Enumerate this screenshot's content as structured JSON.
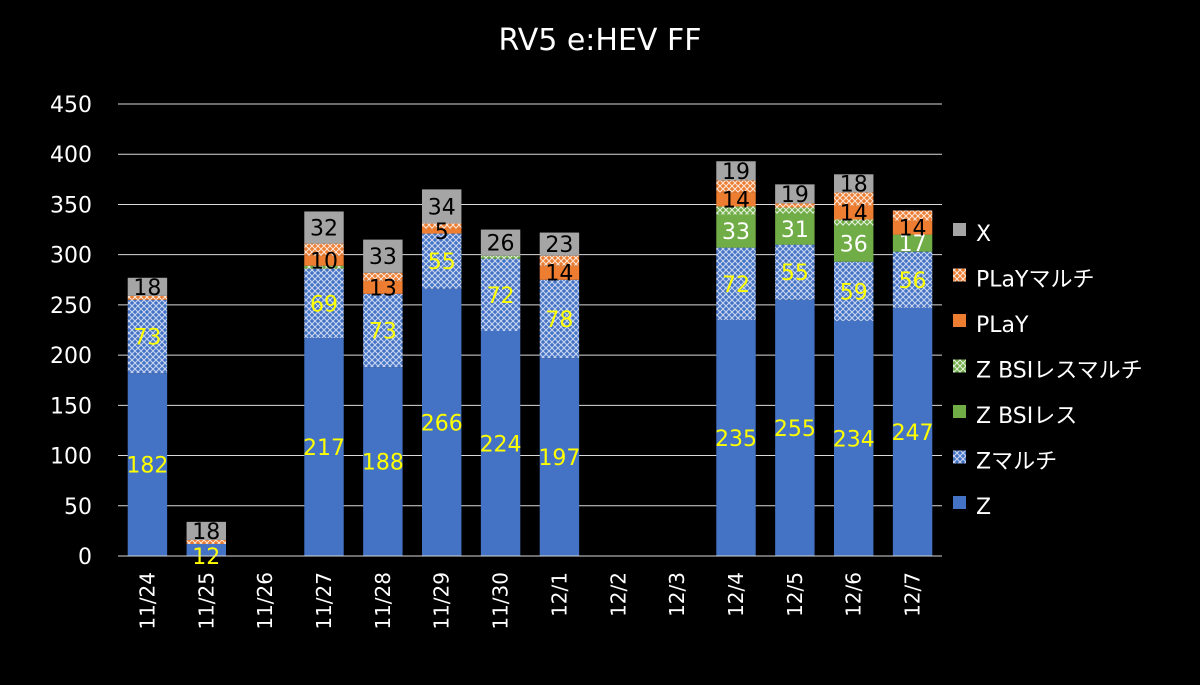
{
  "colors": {
    "background": "#000000",
    "gridline": "#d9d9d9",
    "Z": "#4472c4",
    "Zmulti": "#4472c4",
    "ZBSI": "#70ad47",
    "ZBSImulti": "#70ad47",
    "PLaY": "#ed7d31",
    "PLaYmulti": "#ed7d31",
    "X": "#a5a5a5",
    "label_yellow": "#ffff00",
    "label_dark": "#000000",
    "label_white": "#ffffff"
  },
  "chart_data": {
    "type": "bar",
    "stacked": true,
    "title": "RV5 e:HEV FF",
    "xlabel": "",
    "ylabel": "",
    "ylim": [
      0,
      450
    ],
    "yticks": [
      0,
      50,
      100,
      150,
      200,
      250,
      300,
      350,
      400,
      450
    ],
    "grid": true,
    "legend_position": "right",
    "categories": [
      "11/24",
      "11/25",
      "11/26",
      "11/27",
      "11/28",
      "11/29",
      "11/30",
      "12/1",
      "12/2",
      "12/3",
      "12/4",
      "12/5",
      "12/6",
      "12/7"
    ],
    "series": [
      {
        "name": "Z",
        "key": "Z",
        "values": [
          182,
          12,
          0,
          217,
          188,
          266,
          224,
          197,
          0,
          0,
          235,
          255,
          234,
          247
        ]
      },
      {
        "name": "Zマルチ",
        "key": "Zmulti",
        "values": [
          73,
          0,
          0,
          69,
          73,
          55,
          72,
          78,
          0,
          0,
          72,
          55,
          59,
          56
        ]
      },
      {
        "name": "Z BSIレス",
        "key": "ZBSI",
        "values": [
          0,
          0,
          0,
          0,
          0,
          0,
          0,
          0,
          0,
          0,
          33,
          31,
          36,
          17
        ]
      },
      {
        "name": "Z BSIレスマルチ",
        "key": "ZBSImulti",
        "values": [
          0,
          0,
          0,
          3,
          0,
          0,
          3,
          0,
          0,
          0,
          8,
          6,
          6,
          0
        ]
      },
      {
        "name": "PLaY",
        "key": "PLaY",
        "values": [
          0,
          0,
          0,
          10,
          13,
          5,
          0,
          14,
          0,
          0,
          14,
          0,
          14,
          14
        ]
      },
      {
        "name": "PLaYマルチ",
        "key": "PLaYmulti",
        "values": [
          4,
          4,
          0,
          12,
          8,
          5,
          0,
          10,
          0,
          0,
          12,
          4,
          13,
          10
        ]
      },
      {
        "name": "X",
        "key": "X",
        "values": [
          18,
          18,
          0,
          32,
          33,
          34,
          26,
          23,
          0,
          0,
          19,
          19,
          18,
          0
        ]
      }
    ],
    "data_labels": [
      {
        "category": "11/24",
        "series": "Z",
        "text": "182"
      },
      {
        "category": "11/24",
        "series": "Zmulti",
        "text": "73"
      },
      {
        "category": "11/24",
        "series": "X",
        "text": "18"
      },
      {
        "category": "11/25",
        "series": "Z",
        "text": "12"
      },
      {
        "category": "11/25",
        "series": "X",
        "text": "18"
      },
      {
        "category": "11/27",
        "series": "Z",
        "text": "217"
      },
      {
        "category": "11/27",
        "series": "Zmulti",
        "text": "69"
      },
      {
        "category": "11/27",
        "series": "PLaY",
        "text": "10"
      },
      {
        "category": "11/27",
        "series": "X",
        "text": "32"
      },
      {
        "category": "11/28",
        "series": "Z",
        "text": "188"
      },
      {
        "category": "11/28",
        "series": "Zmulti",
        "text": "73"
      },
      {
        "category": "11/28",
        "series": "PLaY",
        "text": "13"
      },
      {
        "category": "11/28",
        "series": "X",
        "text": "33"
      },
      {
        "category": "11/29",
        "series": "Z",
        "text": "266"
      },
      {
        "category": "11/29",
        "series": "Zmulti",
        "text": "55"
      },
      {
        "category": "11/29",
        "series": "PLaY",
        "text": "5"
      },
      {
        "category": "11/29",
        "series": "X",
        "text": "34"
      },
      {
        "category": "11/30",
        "series": "Z",
        "text": "224"
      },
      {
        "category": "11/30",
        "series": "Zmulti",
        "text": "72"
      },
      {
        "category": "11/30",
        "series": "X",
        "text": "26"
      },
      {
        "category": "12/1",
        "series": "Z",
        "text": "197"
      },
      {
        "category": "12/1",
        "series": "Zmulti",
        "text": "78"
      },
      {
        "category": "12/1",
        "series": "PLaY",
        "text": "14"
      },
      {
        "category": "12/1",
        "series": "X",
        "text": "23"
      },
      {
        "category": "12/4",
        "series": "Z",
        "text": "235"
      },
      {
        "category": "12/4",
        "series": "Zmulti",
        "text": "72"
      },
      {
        "category": "12/4",
        "series": "ZBSI",
        "text": "33"
      },
      {
        "category": "12/4",
        "series": "PLaY",
        "text": "14"
      },
      {
        "category": "12/4",
        "series": "X",
        "text": "19"
      },
      {
        "category": "12/5",
        "series": "Z",
        "text": "255"
      },
      {
        "category": "12/5",
        "series": "Zmulti",
        "text": "55"
      },
      {
        "category": "12/5",
        "series": "ZBSI",
        "text": "31"
      },
      {
        "category": "12/5",
        "series": "X",
        "text": "19"
      },
      {
        "category": "12/6",
        "series": "Z",
        "text": "234"
      },
      {
        "category": "12/6",
        "series": "Zmulti",
        "text": "59"
      },
      {
        "category": "12/6",
        "series": "ZBSI",
        "text": "36"
      },
      {
        "category": "12/6",
        "series": "PLaY",
        "text": "14"
      },
      {
        "category": "12/6",
        "series": "X",
        "text": "18"
      },
      {
        "category": "12/7",
        "series": "Z",
        "text": "247"
      },
      {
        "category": "12/7",
        "series": "Zmulti",
        "text": "56"
      },
      {
        "category": "12/7",
        "series": "ZBSI",
        "text": "17"
      },
      {
        "category": "12/7",
        "series": "PLaY",
        "text": "14"
      }
    ],
    "legend": [
      {
        "key": "X",
        "label": "X"
      },
      {
        "key": "PLaYmulti",
        "label": "PLaYマルチ"
      },
      {
        "key": "PLaY",
        "label": "PLaY"
      },
      {
        "key": "ZBSImulti",
        "label": "Z BSIレスマルチ"
      },
      {
        "key": "ZBSI",
        "label": "Z BSIレス"
      },
      {
        "key": "Zmulti",
        "label": "Zマルチ"
      },
      {
        "key": "Z",
        "label": "Z"
      }
    ]
  }
}
